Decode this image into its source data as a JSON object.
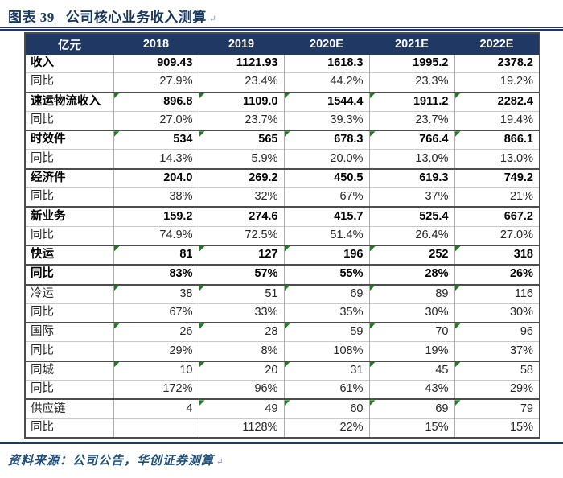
{
  "title": {
    "prefix": "图表 39",
    "text": "公司核心业务收入测算",
    "return_mark": "↵"
  },
  "colors": {
    "header_bg": "#1F3864",
    "title_text": "#17375E",
    "divider_rule": "#1F3864",
    "thick_border": "#4D4D4D",
    "thin_border": "#C9C9C9",
    "triangle_green": "#1B7F1B",
    "source_text": "#1F4E79"
  },
  "table": {
    "unit_header": "亿元",
    "columns": [
      "2018",
      "2019",
      "2020E",
      "2021E",
      "2022E"
    ],
    "rows": [
      {
        "label": "收入",
        "bold": true,
        "border_top": "none",
        "values": [
          "909.43",
          "1121.93",
          "1618.3",
          "1995.2",
          "2378.2"
        ],
        "triangles": [
          false,
          false,
          false,
          false,
          false
        ]
      },
      {
        "label": "同比",
        "bold": false,
        "border_top": "thin",
        "values": [
          "27.9%",
          "23.4%",
          "44.2%",
          "23.3%",
          "19.2%"
        ],
        "triangles": [
          false,
          false,
          false,
          false,
          false
        ]
      },
      {
        "label": "速运物流收入",
        "bold": true,
        "border_top": "thick",
        "values": [
          "896.8",
          "1109.0",
          "1544.4",
          "1911.2",
          "2282.4"
        ],
        "triangles": [
          true,
          true,
          true,
          true,
          true
        ]
      },
      {
        "label": "同比",
        "bold": false,
        "border_top": "thin",
        "values": [
          "27.0%",
          "23.7%",
          "39.3%",
          "23.7%",
          "19.4%"
        ],
        "triangles": [
          false,
          false,
          false,
          false,
          false
        ]
      },
      {
        "label": "时效件",
        "bold": true,
        "border_top": "thick",
        "values": [
          "534",
          "565",
          "678.3",
          "766.4",
          "866.1"
        ],
        "triangles": [
          true,
          true,
          true,
          true,
          true
        ]
      },
      {
        "label": "同比",
        "bold": false,
        "border_top": "thin",
        "values": [
          "14.3%",
          "5.9%",
          "20.0%",
          "13.0%",
          "13.0%"
        ],
        "triangles": [
          false,
          false,
          false,
          false,
          false
        ]
      },
      {
        "label": "经济件",
        "bold": true,
        "border_top": "thick",
        "values": [
          "204.0",
          "269.2",
          "450.5",
          "619.3",
          "749.2"
        ],
        "triangles": [
          false,
          false,
          false,
          false,
          false
        ]
      },
      {
        "label": "同比",
        "bold": false,
        "border_top": "thin",
        "values": [
          "38%",
          "32%",
          "67%",
          "37%",
          "21%"
        ],
        "triangles": [
          false,
          false,
          false,
          false,
          false
        ]
      },
      {
        "label": "新业务",
        "bold": true,
        "border_top": "thick",
        "values": [
          "159.2",
          "274.6",
          "415.7",
          "525.4",
          "667.2"
        ],
        "triangles": [
          false,
          false,
          false,
          false,
          false
        ]
      },
      {
        "label": "同比",
        "bold": false,
        "border_top": "thin",
        "values": [
          "74.9%",
          "72.5%",
          "51.4%",
          "26.4%",
          "27.0%"
        ],
        "triangles": [
          false,
          false,
          false,
          false,
          false
        ]
      },
      {
        "label": "快运",
        "bold": true,
        "border_top": "thick",
        "values": [
          "81",
          "127",
          "196",
          "252",
          "318"
        ],
        "triangles": [
          true,
          true,
          true,
          true,
          true
        ]
      },
      {
        "label": "同比",
        "bold": true,
        "border_top": "thick",
        "values": [
          "83%",
          "57%",
          "55%",
          "28%",
          "26%"
        ],
        "triangles": [
          false,
          false,
          false,
          false,
          false
        ]
      },
      {
        "label": "冷运",
        "bold": false,
        "border_top": "thick",
        "values": [
          "38",
          "51",
          "69",
          "89",
          "116"
        ],
        "triangles": [
          true,
          true,
          true,
          true,
          true
        ]
      },
      {
        "label": "同比",
        "bold": false,
        "border_top": "thin",
        "values": [
          "67%",
          "33%",
          "35%",
          "30%",
          "30%"
        ],
        "triangles": [
          false,
          false,
          false,
          false,
          false
        ]
      },
      {
        "label": "国际",
        "bold": false,
        "border_top": "thick",
        "values": [
          "26",
          "28",
          "59",
          "70",
          "96"
        ],
        "triangles": [
          true,
          true,
          true,
          true,
          true
        ]
      },
      {
        "label": "同比",
        "bold": false,
        "border_top": "thin",
        "values": [
          "29%",
          "8%",
          "108%",
          "19%",
          "37%"
        ],
        "triangles": [
          false,
          false,
          false,
          false,
          false
        ]
      },
      {
        "label": "同城",
        "bold": false,
        "border_top": "thick",
        "values": [
          "10",
          "20",
          "31",
          "45",
          "58"
        ],
        "triangles": [
          true,
          true,
          true,
          true,
          true
        ]
      },
      {
        "label": "同比",
        "bold": false,
        "border_top": "thin",
        "values": [
          "172%",
          "96%",
          "61%",
          "43%",
          "29%"
        ],
        "triangles": [
          false,
          false,
          false,
          false,
          false
        ]
      },
      {
        "label": "供应链",
        "bold": false,
        "border_top": "thick",
        "values": [
          "4",
          "49",
          "60",
          "69",
          "79"
        ],
        "triangles": [
          false,
          true,
          true,
          true,
          true
        ]
      },
      {
        "label": "同比",
        "bold": false,
        "border_top": "thin",
        "values": [
          "",
          "1128%",
          "22%",
          "15%",
          "15%"
        ],
        "triangles": [
          false,
          false,
          false,
          false,
          false
        ]
      }
    ]
  },
  "footer": {
    "text": "资料来源：公司公告，华创证券测算",
    "return_mark": "↵"
  }
}
